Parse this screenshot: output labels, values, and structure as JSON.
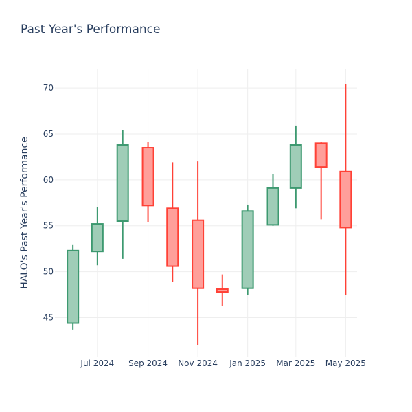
{
  "chart_data": {
    "type": "candlestick",
    "title": "Past Year's Performance",
    "xlabel": "",
    "ylabel": "HALO's Past Year's Performance",
    "ylim": [
      40.7,
      72.1
    ],
    "yticks": [
      45,
      50,
      55,
      60,
      65,
      70
    ],
    "grid": true,
    "legend": "none",
    "colors": {
      "increasing": "#3d9970",
      "decreasing": "#ff4136",
      "increasing_fill": "#9fcdb7",
      "decreasing_fill": "#ff9f9a",
      "grid": "#eeeeee",
      "text": "#2a3f5f"
    },
    "xticks": [
      {
        "date": "2024-07-01",
        "label": "Jul 2024"
      },
      {
        "date": "2024-09-01",
        "label": "Sep 2024"
      },
      {
        "date": "2024-11-01",
        "label": "Nov 2024"
      },
      {
        "date": "2025-01-01",
        "label": "Jan 2025"
      },
      {
        "date": "2025-03-01",
        "label": "Mar 2025"
      },
      {
        "date": "2025-05-01",
        "label": "May 2025"
      }
    ],
    "x_range": [
      "2024-05-10",
      "2025-05-15"
    ],
    "candles": [
      {
        "date": "2024-06-01",
        "open": 44.4,
        "high": 52.9,
        "low": 43.7,
        "close": 52.3
      },
      {
        "date": "2024-07-01",
        "open": 52.2,
        "high": 57.0,
        "low": 50.7,
        "close": 55.2
      },
      {
        "date": "2024-08-01",
        "open": 55.5,
        "high": 65.4,
        "low": 51.4,
        "close": 63.8
      },
      {
        "date": "2024-09-01",
        "open": 63.5,
        "high": 64.1,
        "low": 55.4,
        "close": 57.2
      },
      {
        "date": "2024-10-01",
        "open": 56.9,
        "high": 61.9,
        "low": 48.9,
        "close": 50.6
      },
      {
        "date": "2024-11-01",
        "open": 55.6,
        "high": 62.0,
        "low": 42.0,
        "close": 48.2
      },
      {
        "date": "2024-12-01",
        "open": 48.1,
        "high": 49.7,
        "low": 46.3,
        "close": 47.8
      },
      {
        "date": "2025-01-01",
        "open": 48.2,
        "high": 57.3,
        "low": 47.5,
        "close": 56.6
      },
      {
        "date": "2025-02-01",
        "open": 55.1,
        "high": 60.6,
        "low": 55.0,
        "close": 59.1
      },
      {
        "date": "2025-03-01",
        "open": 59.1,
        "high": 65.9,
        "low": 56.9,
        "close": 63.8
      },
      {
        "date": "2025-04-01",
        "open": 64.0,
        "high": 64.1,
        "low": 55.7,
        "close": 61.4
      },
      {
        "date": "2025-05-01",
        "open": 60.9,
        "high": 70.4,
        "low": 47.5,
        "close": 54.8
      }
    ]
  }
}
